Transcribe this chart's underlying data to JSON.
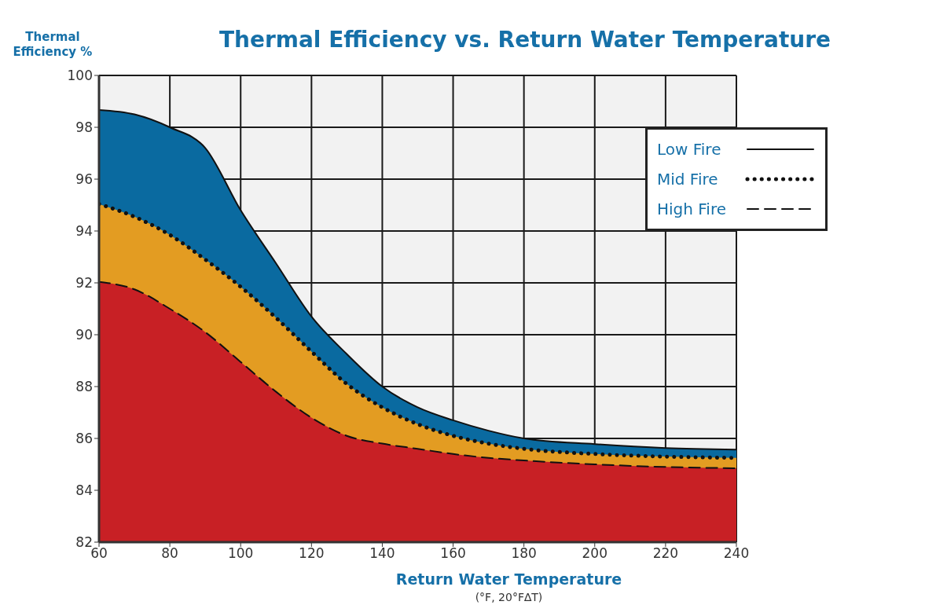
{
  "chart_data": {
    "type": "area",
    "title": "Thermal Efficiency vs. Return Water Temperature",
    "xlabel": "Return Water Temperature",
    "ylabel": "Thermal Efficiency %",
    "annotations": [
      "(°F, 20°F∆T)"
    ],
    "x": [
      60,
      70,
      80,
      90,
      100,
      110,
      120,
      130,
      140,
      150,
      160,
      170,
      180,
      200,
      220,
      240
    ],
    "series": [
      {
        "name": "Low Fire",
        "color": "#0a6aa0",
        "line_style": "solid",
        "values": [
          98.67,
          98.5,
          98.0,
          97.2,
          94.8,
          92.75,
          90.7,
          89.25,
          88.0,
          87.2,
          86.7,
          86.3,
          86.0,
          85.78,
          85.63,
          85.57
        ]
      },
      {
        "name": "Mid Fire",
        "color": "#e39c22",
        "line_style": "dotted",
        "values": [
          95.04,
          94.55,
          93.85,
          92.9,
          91.85,
          90.65,
          89.35,
          88.1,
          87.2,
          86.55,
          86.1,
          85.8,
          85.6,
          85.4,
          85.3,
          85.25
        ]
      },
      {
        "name": "High Fire",
        "color": "#c82025",
        "line_style": "dashed",
        "values": [
          92.04,
          91.75,
          91.0,
          90.1,
          88.95,
          87.8,
          86.8,
          86.1,
          85.8,
          85.6,
          85.4,
          85.25,
          85.15,
          85.0,
          84.9,
          84.85
        ]
      }
    ],
    "xlim": [
      60,
      240
    ],
    "xticks": [
      60,
      80,
      100,
      120,
      140,
      160,
      180,
      200,
      220,
      240
    ],
    "ylim": [
      82,
      100
    ],
    "yticks": [
      82,
      84,
      86,
      88,
      90,
      92,
      94,
      96,
      98,
      100
    ],
    "grid": true,
    "legend": "top right",
    "marker": "none"
  }
}
